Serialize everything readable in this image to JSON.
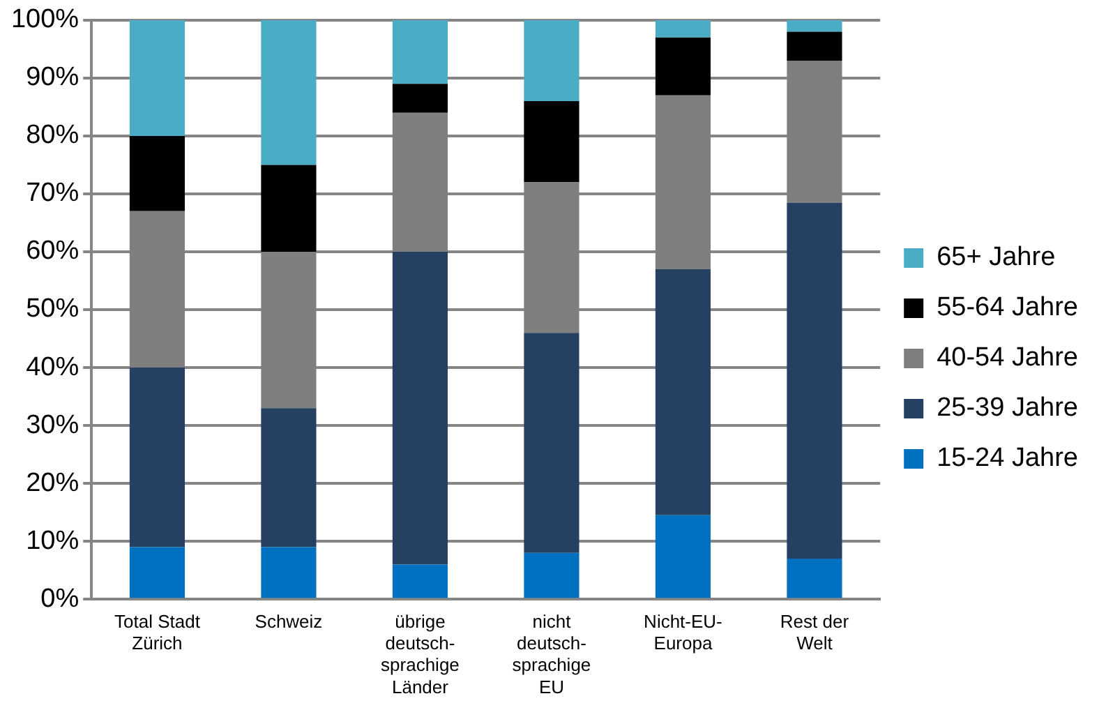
{
  "chart_data": {
    "type": "bar",
    "stacked": true,
    "categories": [
      "Total Stadt\nZürich",
      "Schweiz",
      "übrige\ndeutsch-\nsprachige\nLänder",
      "nicht\ndeutsch-\nsprachige\nEU",
      "Nicht-EU-\nEuropa",
      "Rest der\nWelt"
    ],
    "series": [
      {
        "name": "15-24 Jahre",
        "color": "#0070c0",
        "values": [
          9,
          9,
          6,
          8,
          14.5,
          7
        ]
      },
      {
        "name": "25-39 Jahre",
        "color": "#254061",
        "values": [
          31,
          24,
          54,
          38,
          42.5,
          61.5
        ]
      },
      {
        "name": "40-54 Jahre",
        "color": "#7f7f7f",
        "values": [
          27,
          27,
          24,
          26,
          30,
          24.5
        ]
      },
      {
        "name": "55-64 Jahre",
        "color": "#000000",
        "values": [
          13,
          15,
          5,
          14,
          10,
          5
        ]
      },
      {
        "name": "65+ Jahre",
        "color": "#4bacc6",
        "values": [
          20,
          25,
          11,
          14,
          3,
          2
        ]
      }
    ],
    "ylim": [
      0,
      100
    ],
    "yticks": [
      {
        "value": 0,
        "label": "0%"
      },
      {
        "value": 10,
        "label": "10%"
      },
      {
        "value": 20,
        "label": "20%"
      },
      {
        "value": 30,
        "label": "30%"
      },
      {
        "value": 40,
        "label": "40%"
      },
      {
        "value": 50,
        "label": "50%"
      },
      {
        "value": 60,
        "label": "60%"
      },
      {
        "value": 70,
        "label": "70%"
      },
      {
        "value": 80,
        "label": "80%"
      },
      {
        "value": 90,
        "label": "90%"
      },
      {
        "value": 100,
        "label": "100%"
      }
    ],
    "grid": "y",
    "legend": "right"
  }
}
